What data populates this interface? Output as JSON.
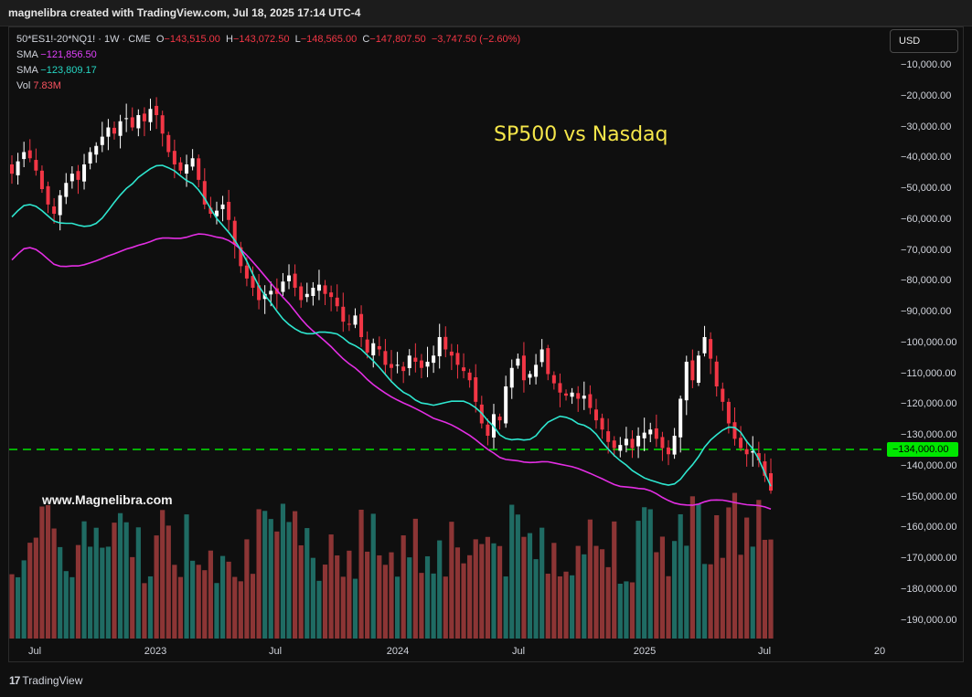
{
  "header": {
    "attribution": "magnelibra created with TradingView.com, Jul 18, 2025 17:14 UTC-4"
  },
  "legend": {
    "symbol": "50*ES1!-20*NQ1! · 1W · CME",
    "o_label": "O",
    "o_value": "−143,515.00",
    "h_label": "H",
    "h_value": "−143,072.50",
    "l_label": "L",
    "l_value": "−148,565.00",
    "c_label": "C",
    "c_value": "−147,807.50",
    "change": "−3,747.50 (−2.60%)",
    "sma1_label": "SMA",
    "sma1_value": "−121,856.50",
    "sma2_label": "SMA",
    "sma2_value": "−123,809.17",
    "vol_label": "Vol",
    "vol_value": "7.83M"
  },
  "currency_button": "USD",
  "annotation_title": "SP500 vs Nasdaq",
  "watermark": "www.Magnelibra.com",
  "footer": {
    "brand": "TradingView",
    "logo_text": "17"
  },
  "colors": {
    "up": "#ffffff",
    "down": "#f23645",
    "vol_up": "#1f6b63",
    "vol_down": "#8c3535",
    "sma_fast": "#2ee6cf",
    "sma_slow": "#e32ee3",
    "level_line": "#00e600",
    "title": "#f5e64a"
  },
  "chart_data": {
    "type": "candlestick",
    "timeframe": "1W",
    "price_axis_ticks": [
      "−10,000.00",
      "−20,000.00",
      "−30,000.00",
      "−40,000.00",
      "−50,000.00",
      "−60,000.00",
      "−70,000.00",
      "−80,000.00",
      "−90,000.00",
      "−100,000.00",
      "−110,000.00",
      "−120,000.00",
      "−130,000.00",
      "−140,000.00",
      "−150,000.00",
      "−160,000.00",
      "−170,000.00",
      "−180,000.00",
      "−190,000.00"
    ],
    "time_axis_ticks": [
      "Jul",
      "2023",
      "Jul",
      "2024",
      "Jul",
      "2025",
      "Jul",
      "20"
    ],
    "horizontal_level": {
      "value": -134000,
      "label": "−134,000.00",
      "style": "dashed"
    },
    "close_series": [
      -45000,
      -41000,
      -38000,
      -40000,
      -44000,
      -50000,
      -55000,
      -58000,
      -52000,
      -48000,
      -45000,
      -47000,
      -42000,
      -38000,
      -36000,
      -33000,
      -30000,
      -32000,
      -28000,
      -27000,
      -30000,
      -26000,
      -28000,
      -24000,
      -26000,
      -32000,
      -38000,
      -42000,
      -44000,
      -42000,
      -40000,
      -47000,
      -55000,
      -58000,
      -57000,
      -55000,
      -60000,
      -68000,
      -75000,
      -79000,
      -82000,
      -86000,
      -84000,
      -83000,
      -84000,
      -80000,
      -78000,
      -82000,
      -86000,
      -84000,
      -82000,
      -81000,
      -84000,
      -85000,
      -88000,
      -93000,
      -94000,
      -91000,
      -98000,
      -103000,
      -100000,
      -102000,
      -107000,
      -108000,
      -107000,
      -109000,
      -104000,
      -106000,
      -108000,
      -106000,
      -104000,
      -98000,
      -102000,
      -104000,
      -107000,
      -109000,
      -112000,
      -119000,
      -126000,
      -130000,
      -123000,
      -125000,
      -114000,
      -108000,
      -105000,
      -112000,
      -110000,
      -107000,
      -102000,
      -110000,
      -113000,
      -116000,
      -117000,
      -116000,
      -118000,
      -117000,
      -121000,
      -125000,
      -128000,
      -132000,
      -134000,
      -133000,
      -131000,
      -134000,
      -130000,
      -129000,
      -128000,
      -131000,
      -134000,
      -136000,
      -130000,
      -118000,
      -106000,
      -112000,
      -104000,
      -98000,
      -105000,
      -114000,
      -119000,
      -126000,
      -131000,
      -134000,
      -136000,
      -135000,
      -138000,
      -143000,
      -147800
    ],
    "sma_fast": {
      "label": "SMA",
      "last": -123809.17
    },
    "sma_slow": {
      "label": "SMA",
      "last": -121856.5
    }
  }
}
